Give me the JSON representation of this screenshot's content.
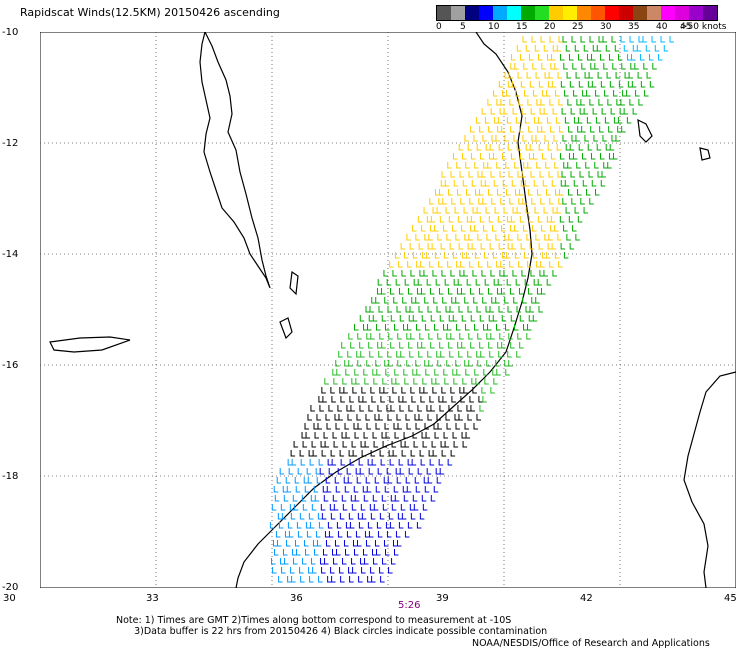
{
  "title": "Rapidscat Winds(12.5KM) 20150426 ascending",
  "legend": {
    "colors": [
      "#555555",
      "#a0a0a0",
      "#000080",
      "#0000ff",
      "#00aaff",
      "#00ffff",
      "#00aa00",
      "#22dd22",
      "#ffcc00",
      "#ffee00",
      "#ff8800",
      "#ff5500",
      "#ff0000",
      "#cc0000",
      "#8b4513",
      "#cc8866",
      "#ff00ff",
      "#dd00dd",
      "#9900cc",
      "#660099"
    ],
    "labels": [
      "0",
      "5",
      "10",
      "15",
      "20",
      "25",
      "30",
      "35",
      "40",
      "45",
      ">50 knots"
    ]
  },
  "axes": {
    "lat_labels": [
      "-10",
      "-12",
      "-14",
      "-16",
      "-18",
      "-20"
    ],
    "lon_labels": [
      "30",
      "33",
      "36",
      "39",
      "42",
      "45"
    ]
  },
  "time_label": "5:26",
  "notes": "Note: 1) Times are GMT 2)Times along bottom correspond to measurement at -10S\n      3)Data buffer is 22 hrs from 20150426 4) Black circles indicate possible contamination",
  "credit": "NOAA/NESDIS/Office of Research and Applications"
}
